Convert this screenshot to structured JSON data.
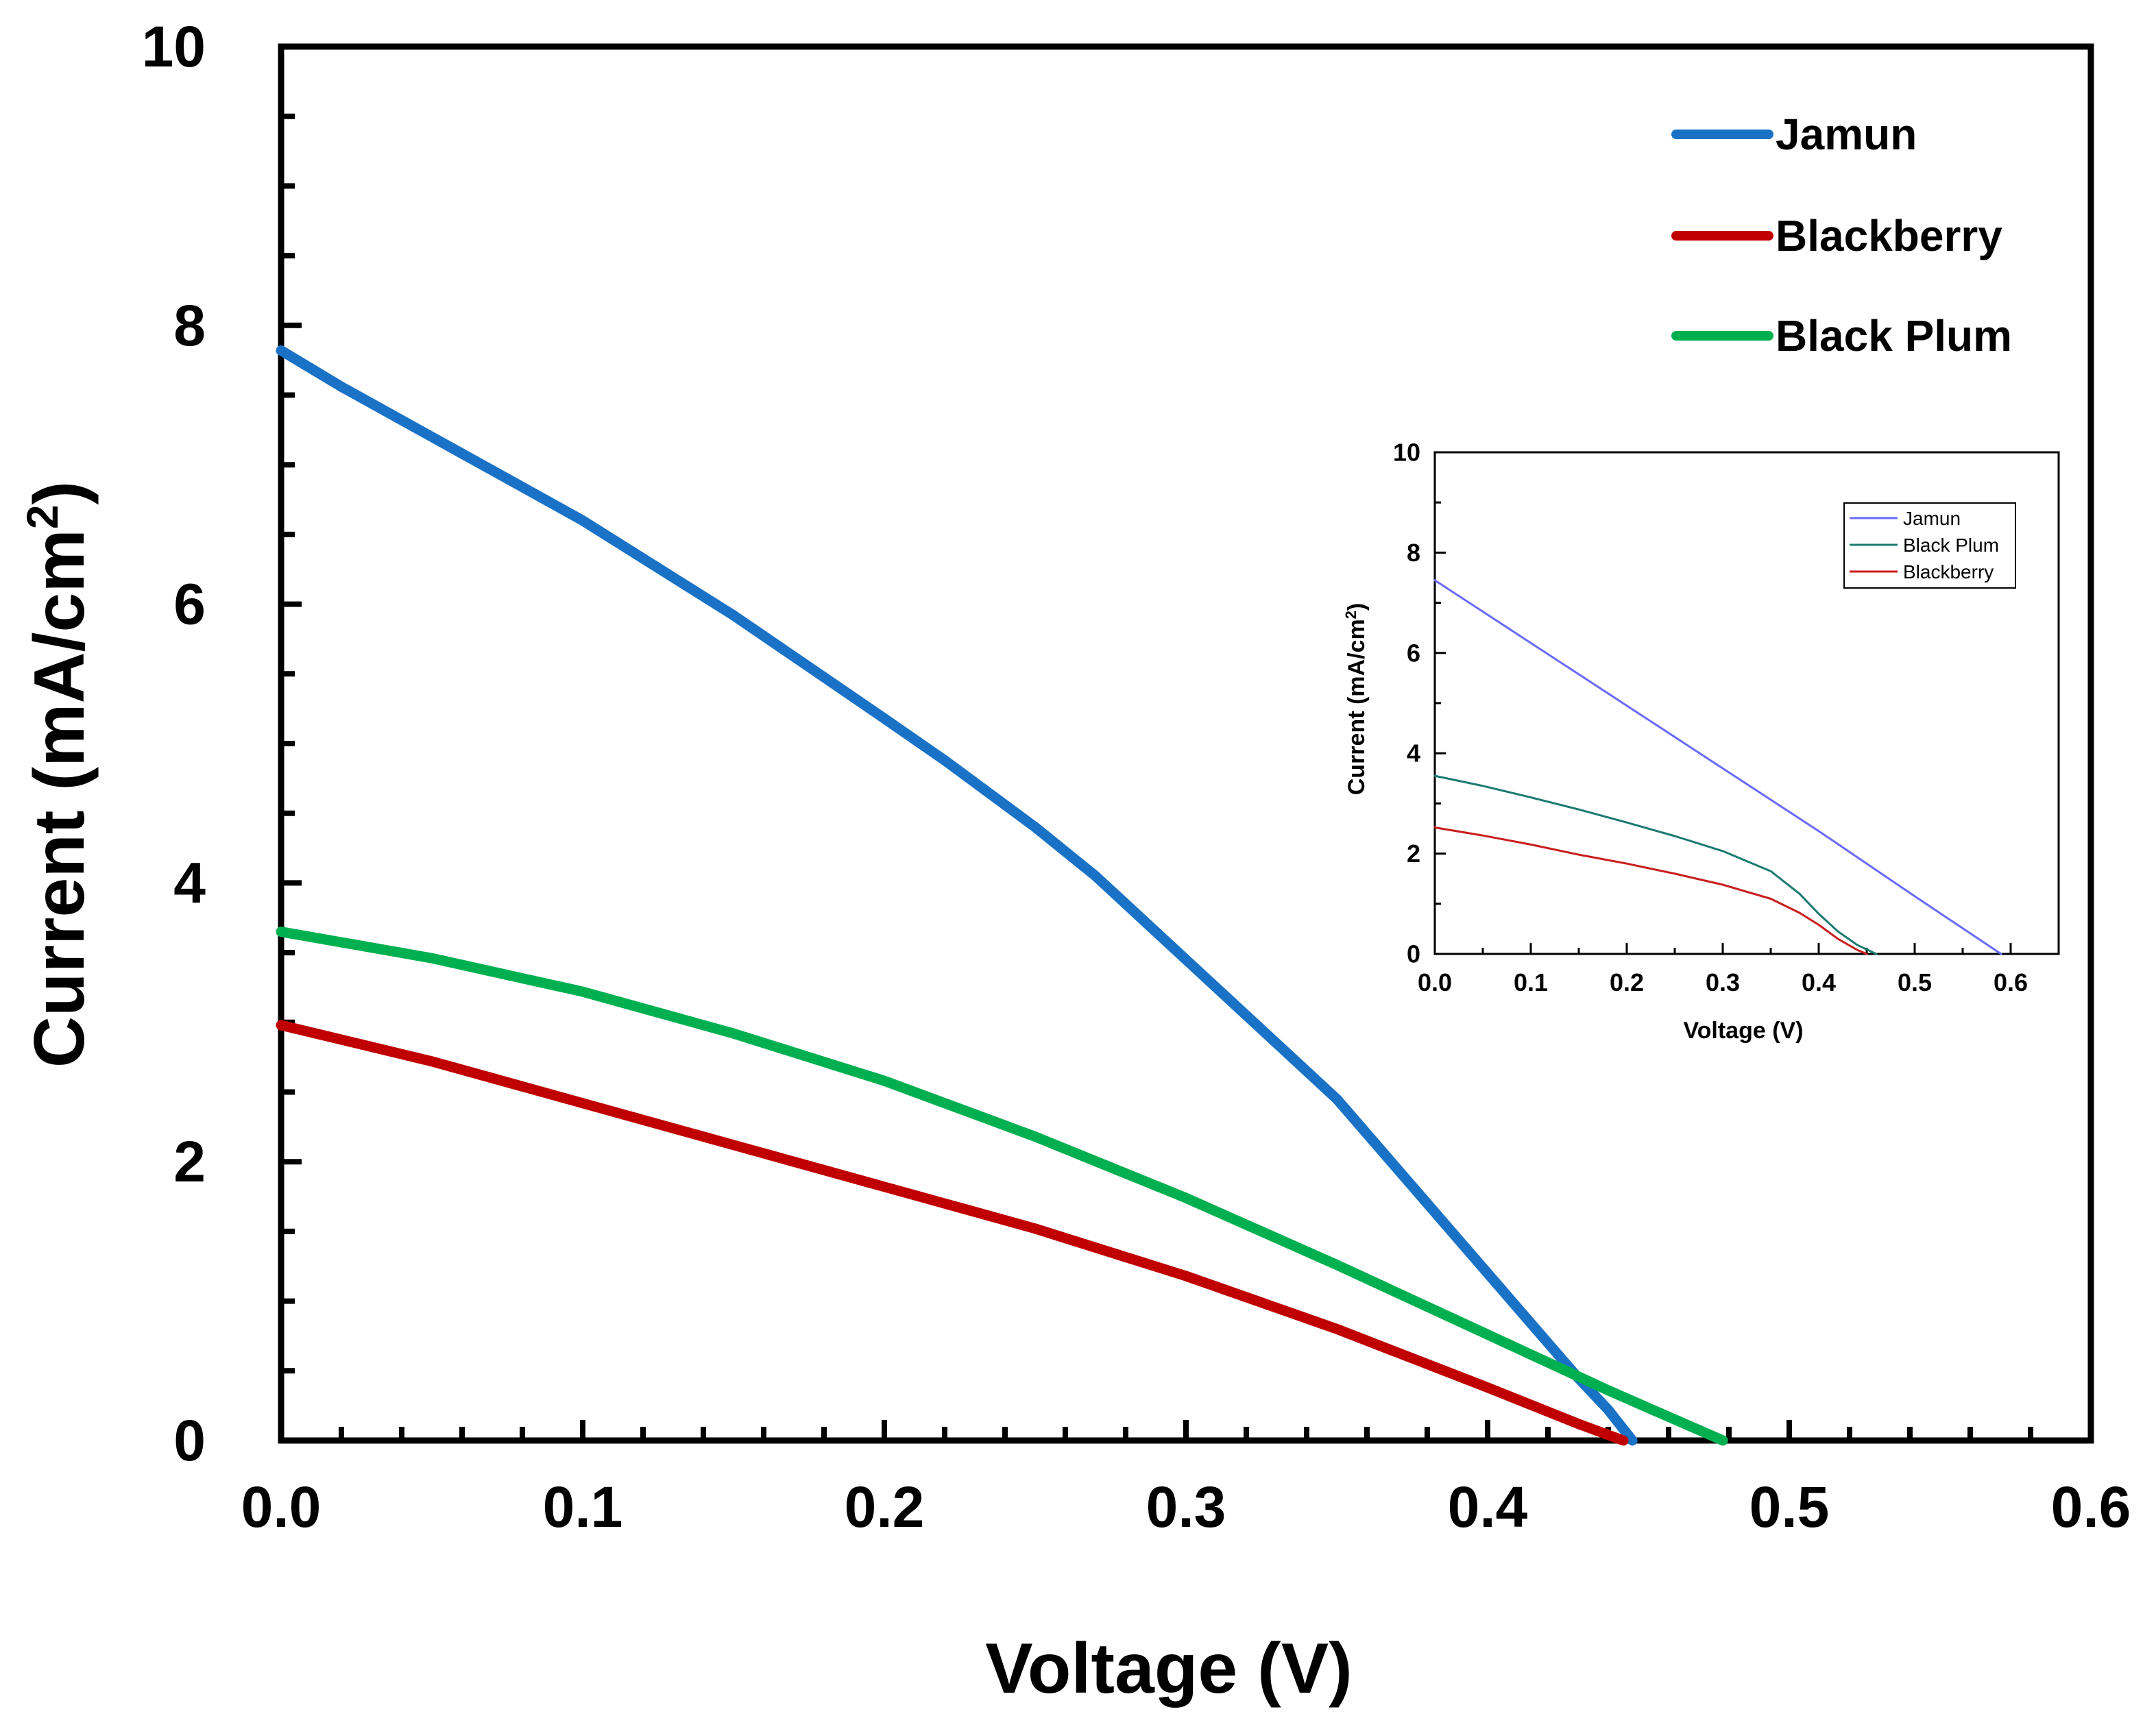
{
  "chart_data": [
    {
      "id": "main",
      "type": "line",
      "title": "",
      "xlabel": "Voltage (V)",
      "ylabel_main": "Current (mA/cm",
      "ylabel_sup": "2",
      "ylabel_close": ")",
      "xlim": [
        0,
        0.6
      ],
      "ylim": [
        0,
        10
      ],
      "xticks": [
        "0.0",
        "0.1",
        "0.2",
        "0.3",
        "0.4",
        "0.5",
        "0.6"
      ],
      "yticks": [
        "0",
        "2",
        "4",
        "6",
        "8",
        "10"
      ],
      "grid": false,
      "legend_position": "top-right",
      "series": [
        {
          "name": "Jamun",
          "color": "#1a72c6",
          "points": [
            [
              0.0,
              7.82
            ],
            [
              0.02,
              7.56
            ],
            [
              0.05,
              7.2
            ],
            [
              0.08,
              6.84
            ],
            [
              0.1,
              6.6
            ],
            [
              0.15,
              5.92
            ],
            [
              0.2,
              5.18
            ],
            [
              0.22,
              4.88
            ],
            [
              0.25,
              4.4
            ],
            [
              0.27,
              4.05
            ],
            [
              0.3,
              3.45
            ],
            [
              0.32,
              3.05
            ],
            [
              0.35,
              2.45
            ],
            [
              0.37,
              1.95
            ],
            [
              0.39,
              1.45
            ],
            [
              0.41,
              0.95
            ],
            [
              0.43,
              0.45
            ],
            [
              0.44,
              0.22
            ],
            [
              0.448,
              0.0
            ]
          ]
        },
        {
          "name": "Blackberry",
          "color": "#c00000",
          "points": [
            [
              0.0,
              2.98
            ],
            [
              0.05,
              2.72
            ],
            [
              0.1,
              2.42
            ],
            [
              0.15,
              2.12
            ],
            [
              0.2,
              1.82
            ],
            [
              0.25,
              1.52
            ],
            [
              0.3,
              1.18
            ],
            [
              0.35,
              0.8
            ],
            [
              0.4,
              0.38
            ],
            [
              0.43,
              0.12
            ],
            [
              0.445,
              0.0
            ]
          ]
        },
        {
          "name": "Black Plum",
          "color": "#00b050",
          "points": [
            [
              0.0,
              3.65
            ],
            [
              0.05,
              3.46
            ],
            [
              0.1,
              3.22
            ],
            [
              0.15,
              2.92
            ],
            [
              0.2,
              2.58
            ],
            [
              0.25,
              2.18
            ],
            [
              0.3,
              1.74
            ],
            [
              0.35,
              1.26
            ],
            [
              0.4,
              0.76
            ],
            [
              0.44,
              0.36
            ],
            [
              0.46,
              0.17
            ],
            [
              0.478,
              0.0
            ]
          ]
        }
      ]
    },
    {
      "id": "inset",
      "type": "line",
      "title": "",
      "xlabel": "Voltage (V)",
      "ylabel_main": "Current (mA/cm",
      "ylabel_sup": "2",
      "ylabel_close": ")",
      "xlim": [
        0,
        0.65
      ],
      "ylim": [
        0,
        10
      ],
      "xticks": [
        "0.0",
        "0.1",
        "0.2",
        "0.3",
        "0.4",
        "0.5",
        "0.6"
      ],
      "yticks": [
        "0",
        "2",
        "4",
        "6",
        "8",
        "10"
      ],
      "grid": false,
      "legend_position": "top-right",
      "series": [
        {
          "name": "Jamun",
          "color": "#6a6aff",
          "points": [
            [
              0.0,
              7.45
            ],
            [
              0.1,
              6.2
            ],
            [
              0.2,
              4.95
            ],
            [
              0.3,
              3.7
            ],
            [
              0.4,
              2.45
            ],
            [
              0.5,
              1.15
            ],
            [
              0.59,
              0.0
            ]
          ]
        },
        {
          "name": "Black Plum",
          "color": "#1a7a70",
          "points": [
            [
              0.0,
              3.55
            ],
            [
              0.05,
              3.35
            ],
            [
              0.1,
              3.12
            ],
            [
              0.15,
              2.88
            ],
            [
              0.2,
              2.62
            ],
            [
              0.25,
              2.35
            ],
            [
              0.3,
              2.05
            ],
            [
              0.35,
              1.65
            ],
            [
              0.38,
              1.2
            ],
            [
              0.4,
              0.8
            ],
            [
              0.42,
              0.45
            ],
            [
              0.44,
              0.18
            ],
            [
              0.46,
              0.0
            ]
          ]
        },
        {
          "name": "Blackberry",
          "color": "#c81e1e",
          "points": [
            [
              0.0,
              2.52
            ],
            [
              0.05,
              2.36
            ],
            [
              0.1,
              2.18
            ],
            [
              0.15,
              1.98
            ],
            [
              0.2,
              1.8
            ],
            [
              0.25,
              1.6
            ],
            [
              0.3,
              1.38
            ],
            [
              0.35,
              1.1
            ],
            [
              0.38,
              0.82
            ],
            [
              0.4,
              0.58
            ],
            [
              0.42,
              0.3
            ],
            [
              0.44,
              0.08
            ],
            [
              0.45,
              0.0
            ]
          ]
        }
      ]
    }
  ]
}
